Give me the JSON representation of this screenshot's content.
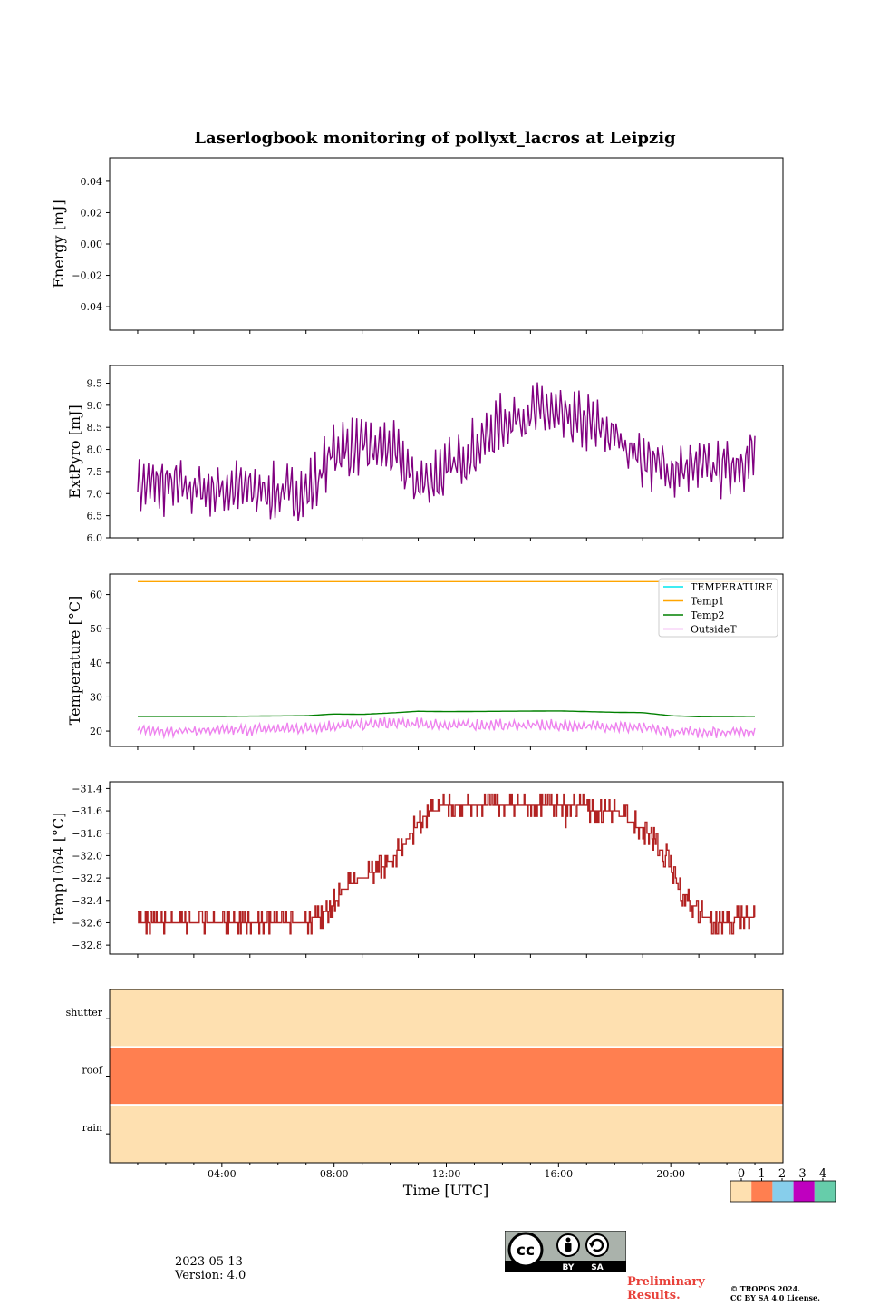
{
  "title": "Laserlogbook monitoring of pollyxt_lacros at Leipzig",
  "footer": {
    "date": "2023-05-13",
    "version": "Version: 4.0",
    "preliminary_line1": "Preliminary",
    "preliminary_line2": "Results.",
    "copyright_line1": "© TROPOS 2024.",
    "copyright_line2": "CC BY SA 4.0 License.",
    "cc_badge": {
      "cc": "cc",
      "by": "BY",
      "sa": "SA"
    }
  },
  "x_axis": {
    "label": "Time [UTC]",
    "range_hours": [
      0,
      24
    ],
    "tick_labels": [
      "04:00",
      "08:00",
      "12:00",
      "16:00",
      "20:00"
    ],
    "tick_hours": [
      4,
      8,
      12,
      16,
      20
    ]
  },
  "colorbar": {
    "labels": [
      "0",
      "1",
      "2",
      "3",
      "4"
    ],
    "colors": [
      "#fee0b0",
      "#ff7f50",
      "#87ceeb",
      "#bf00bf",
      "#66cdaa"
    ]
  },
  "chart_data": [
    {
      "type": "line",
      "ylabel": "Energy [mJ]",
      "ylim": [
        -0.055,
        0.055
      ],
      "yticks": [
        "0.04",
        "0.02",
        "0.00",
        "−0.02",
        "−0.04"
      ],
      "ytick_values": [
        0.04,
        0.02,
        0.0,
        -0.02,
        -0.04
      ],
      "series": []
    },
    {
      "type": "line",
      "ylabel": "ExtPyro [mJ]",
      "ylim": [
        6.0,
        9.9
      ],
      "yticks": [
        "9.5",
        "9.0",
        "8.5",
        "8.0",
        "7.5",
        "7.0",
        "6.5",
        "6.0"
      ],
      "ytick_values": [
        9.5,
        9.0,
        8.5,
        8.0,
        7.5,
        7.0,
        6.5,
        6.0
      ],
      "series": [
        {
          "color": "#800080",
          "x_hours": [
            1,
            2,
            3,
            4,
            5,
            6,
            7,
            7.5,
            8,
            9,
            10,
            10.5,
            11,
            12,
            13,
            14,
            15,
            15.5,
            16,
            17,
            18,
            19,
            20,
            21,
            22,
            23
          ],
          "mean": [
            7.2,
            7.2,
            7.1,
            7.1,
            7.1,
            7.0,
            7.0,
            7.4,
            8.0,
            8.0,
            8.0,
            7.6,
            7.2,
            7.5,
            8.0,
            8.6,
            8.8,
            8.9,
            8.7,
            8.6,
            8.3,
            7.8,
            7.5,
            7.6,
            7.6,
            7.9
          ],
          "amplitude": 0.6
        }
      ]
    },
    {
      "type": "line",
      "ylabel": "Temperature [°C]",
      "ylim": [
        15.5,
        66
      ],
      "yticks": [
        "60",
        "50",
        "40",
        "30",
        "20"
      ],
      "ytick_values": [
        60,
        50,
        40,
        30,
        20
      ],
      "legend_position": "upper-right",
      "series": [
        {
          "name": "TEMPERATURE",
          "color": "#00e5ee",
          "x_hours": [],
          "y": []
        },
        {
          "name": "Temp1",
          "color": "#ffa500",
          "x_hours": [
            1,
            24
          ],
          "y": [
            63.8,
            63.8
          ]
        },
        {
          "name": "Temp2",
          "color": "#008000",
          "x_hours": [
            1,
            4,
            7,
            8,
            9,
            10,
            11,
            12,
            14,
            16,
            18,
            19,
            20,
            21,
            24
          ],
          "y": [
            24.3,
            24.3,
            24.5,
            25.0,
            24.9,
            25.3,
            25.8,
            25.7,
            25.8,
            25.9,
            25.5,
            25.4,
            24.5,
            24.2,
            24.4
          ]
        },
        {
          "name": "OutsideT",
          "color": "#ee82ee",
          "x_hours": [
            1,
            4,
            7,
            8,
            10,
            12,
            16,
            18,
            19,
            20,
            22,
            24
          ],
          "mean": [
            20.0,
            20.2,
            20.8,
            21.5,
            22.2,
            21.8,
            21.6,
            21.3,
            20.8,
            19.8,
            19.8,
            20.0
          ],
          "amplitude": 1.5
        }
      ]
    },
    {
      "type": "line",
      "ylabel": "Temp1064 [°C]",
      "ylim": [
        -32.88,
        -31.34
      ],
      "yticks": [
        "−31.4",
        "−31.6",
        "−31.8",
        "−32.0",
        "−32.2",
        "−32.4",
        "−32.6",
        "−32.8"
      ],
      "ytick_values": [
        -31.4,
        -31.6,
        -31.8,
        -32.0,
        -32.2,
        -32.4,
        -32.6,
        -32.8
      ],
      "series": [
        {
          "color": "#b22222",
          "x_hours": [
            1,
            3,
            5,
            7,
            7.8,
            8.3,
            9,
            9.8,
            10.5,
            11,
            11.5,
            12,
            14,
            16,
            18,
            18.6,
            19.2,
            19.8,
            20.3,
            21,
            21.5,
            23
          ],
          "y": [
            -32.6,
            -32.6,
            -32.6,
            -32.6,
            -32.5,
            -32.3,
            -32.2,
            -32.1,
            -31.9,
            -31.7,
            -31.6,
            -31.55,
            -31.55,
            -31.55,
            -31.6,
            -31.7,
            -31.8,
            -32.0,
            -32.3,
            -32.5,
            -32.6,
            -32.55
          ]
        }
      ]
    },
    {
      "type": "heatmap",
      "rows": [
        "shutter",
        "roof",
        "rain"
      ],
      "row_values": [
        0,
        1,
        0
      ],
      "x_range_hours": [
        0,
        24
      ]
    }
  ]
}
